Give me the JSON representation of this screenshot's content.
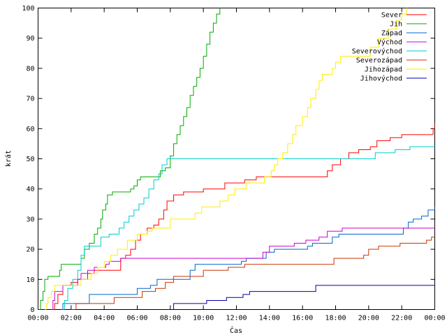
{
  "chart_data": {
    "type": "line",
    "title": "",
    "xlabel": "Čas",
    "ylabel": "krát",
    "xlim": [
      "00:00",
      "24:00"
    ],
    "ylim": [
      0,
      100
    ],
    "x_ticks": [
      "00:00",
      "02:00",
      "04:00",
      "06:00",
      "08:00",
      "10:00",
      "12:00",
      "14:00",
      "16:00",
      "18:00",
      "20:00",
      "22:00",
      "00:00"
    ],
    "y_ticks": [
      0,
      10,
      20,
      30,
      40,
      50,
      60,
      70,
      80,
      90,
      100
    ],
    "grid": false,
    "legend_position": "top-right",
    "step": true,
    "series": [
      {
        "name": "Sever",
        "color": "#ff0000",
        "points": [
          [
            0.9,
            0
          ],
          [
            1,
            2
          ],
          [
            1.2,
            5
          ],
          [
            1.5,
            8
          ],
          [
            2,
            9
          ],
          [
            2.4,
            10
          ],
          [
            3,
            12
          ],
          [
            3.4,
            13
          ],
          [
            4.5,
            13
          ],
          [
            5,
            17
          ],
          [
            5.3,
            18
          ],
          [
            5.6,
            20
          ],
          [
            5.9,
            23
          ],
          [
            6.2,
            25
          ],
          [
            6.6,
            27
          ],
          [
            7,
            28
          ],
          [
            7.3,
            30
          ],
          [
            7.6,
            33
          ],
          [
            7.8,
            36
          ],
          [
            8.2,
            38
          ],
          [
            8.8,
            39
          ],
          [
            10,
            40
          ],
          [
            11.3,
            42
          ],
          [
            12.5,
            43
          ],
          [
            13.2,
            44
          ],
          [
            17.5,
            46
          ],
          [
            17.8,
            48
          ],
          [
            18.3,
            50
          ],
          [
            18.8,
            52
          ],
          [
            19.4,
            53
          ],
          [
            20.1,
            54
          ],
          [
            20.5,
            56
          ],
          [
            21.3,
            57
          ],
          [
            22,
            58
          ],
          [
            23.9,
            60
          ],
          [
            24,
            62
          ]
        ]
      },
      {
        "name": "Jih",
        "color": "#00aa00",
        "points": [
          [
            0,
            0
          ],
          [
            0.15,
            3
          ],
          [
            0.3,
            6
          ],
          [
            0.4,
            10
          ],
          [
            0.6,
            11
          ],
          [
            1.3,
            13
          ],
          [
            1.4,
            15
          ],
          [
            2.3,
            15
          ],
          [
            2.6,
            17
          ],
          [
            2.8,
            20
          ],
          [
            3.1,
            22
          ],
          [
            3.4,
            25
          ],
          [
            3.6,
            27
          ],
          [
            3.8,
            30
          ],
          [
            3.9,
            33
          ],
          [
            4.1,
            35
          ],
          [
            4.2,
            38
          ],
          [
            4.5,
            39
          ],
          [
            5.4,
            39
          ],
          [
            5.6,
            40
          ],
          [
            5.8,
            41
          ],
          [
            6,
            43
          ],
          [
            6.2,
            44
          ],
          [
            7,
            44
          ],
          [
            7.4,
            46
          ],
          [
            7.7,
            47
          ],
          [
            8,
            51
          ],
          [
            8.2,
            55
          ],
          [
            8.4,
            58
          ],
          [
            8.6,
            61
          ],
          [
            8.8,
            64
          ],
          [
            9,
            67
          ],
          [
            9.2,
            71
          ],
          [
            9.4,
            74
          ],
          [
            9.6,
            77
          ],
          [
            9.8,
            80
          ],
          [
            10,
            84
          ],
          [
            10.2,
            88
          ],
          [
            10.4,
            92
          ],
          [
            10.6,
            95
          ],
          [
            10.8,
            98
          ],
          [
            11,
            100
          ]
        ]
      },
      {
        "name": "Západ",
        "color": "#0066cc",
        "points": [
          [
            1.4,
            0
          ],
          [
            1.5,
            2
          ],
          [
            3,
            2
          ],
          [
            3.1,
            5
          ],
          [
            5.6,
            5
          ],
          [
            6,
            7
          ],
          [
            6.8,
            8
          ],
          [
            7.2,
            10
          ],
          [
            8.8,
            10
          ],
          [
            9.2,
            13
          ],
          [
            9.5,
            15
          ],
          [
            12.3,
            16
          ],
          [
            12.6,
            17
          ],
          [
            13.6,
            17
          ],
          [
            13.8,
            19
          ],
          [
            14.3,
            20
          ],
          [
            16.3,
            21
          ],
          [
            16.6,
            22
          ],
          [
            17.8,
            24
          ],
          [
            18.2,
            25
          ],
          [
            21.9,
            25
          ],
          [
            22.1,
            27
          ],
          [
            22.4,
            29
          ],
          [
            22.7,
            30
          ],
          [
            23.2,
            31
          ],
          [
            23.6,
            33
          ],
          [
            24,
            34
          ]
        ]
      },
      {
        "name": "Východ",
        "color": "#cc00cc",
        "points": [
          [
            0.8,
            0
          ],
          [
            0.9,
            3
          ],
          [
            1,
            6
          ],
          [
            1.4,
            6
          ],
          [
            1.5,
            8
          ],
          [
            2.4,
            10
          ],
          [
            2.6,
            12
          ],
          [
            3,
            13
          ],
          [
            3.4,
            14
          ],
          [
            4.1,
            15
          ],
          [
            4.3,
            16
          ],
          [
            5,
            17
          ],
          [
            13.4,
            17
          ],
          [
            13.6,
            19
          ],
          [
            14,
            21
          ],
          [
            15.5,
            22
          ],
          [
            16.2,
            23
          ],
          [
            17,
            24
          ],
          [
            17.5,
            26
          ],
          [
            18.4,
            27
          ],
          [
            24,
            27
          ]
        ]
      },
      {
        "name": "Severovýchod",
        "color": "#00cccc",
        "points": [
          [
            1.5,
            0
          ],
          [
            1.6,
            3
          ],
          [
            1.8,
            7
          ],
          [
            2.1,
            10
          ],
          [
            2.4,
            13
          ],
          [
            2.6,
            18
          ],
          [
            2.8,
            21
          ],
          [
            3.5,
            21
          ],
          [
            3.8,
            24
          ],
          [
            4.3,
            25
          ],
          [
            4.9,
            27
          ],
          [
            5.2,
            29
          ],
          [
            5.5,
            31
          ],
          [
            5.8,
            33
          ],
          [
            6.1,
            35
          ],
          [
            6.4,
            37
          ],
          [
            6.7,
            40
          ],
          [
            7,
            43
          ],
          [
            7.3,
            45
          ],
          [
            7.5,
            48
          ],
          [
            7.8,
            50
          ],
          [
            20,
            50
          ],
          [
            20.4,
            52
          ],
          [
            21.6,
            53
          ],
          [
            22.5,
            54
          ],
          [
            24,
            54
          ]
        ]
      },
      {
        "name": "Severozápad",
        "color": "#cc3300",
        "points": [
          [
            2,
            0
          ],
          [
            2.3,
            2
          ],
          [
            4.3,
            2
          ],
          [
            4.6,
            4
          ],
          [
            6.1,
            4
          ],
          [
            6.3,
            6
          ],
          [
            7.1,
            7
          ],
          [
            7.7,
            9
          ],
          [
            8.2,
            11
          ],
          [
            9.5,
            11
          ],
          [
            10,
            13
          ],
          [
            11.5,
            14
          ],
          [
            12.5,
            15
          ],
          [
            17.5,
            15
          ],
          [
            17.9,
            17
          ],
          [
            19.7,
            18
          ],
          [
            20,
            20
          ],
          [
            20.6,
            21
          ],
          [
            21.9,
            22
          ],
          [
            23.5,
            23
          ],
          [
            23.8,
            24
          ],
          [
            24,
            24
          ]
        ]
      },
      {
        "name": "Jihozápad",
        "color": "#ffee00",
        "points": [
          [
            0.4,
            0
          ],
          [
            0.5,
            2
          ],
          [
            0.6,
            4
          ],
          [
            0.8,
            6
          ],
          [
            1,
            8
          ],
          [
            2.2,
            8
          ],
          [
            2.6,
            10
          ],
          [
            3.2,
            12
          ],
          [
            3.6,
            14
          ],
          [
            4,
            16
          ],
          [
            4.4,
            18
          ],
          [
            4.8,
            20
          ],
          [
            5.4,
            23
          ],
          [
            6,
            25
          ],
          [
            6.6,
            26
          ],
          [
            6.9,
            27
          ],
          [
            8,
            30
          ],
          [
            9.2,
            30
          ],
          [
            9.5,
            32
          ],
          [
            9.9,
            34
          ],
          [
            10.6,
            34
          ],
          [
            11,
            36
          ],
          [
            11.5,
            38
          ],
          [
            11.9,
            40
          ],
          [
            12.6,
            42
          ],
          [
            13.4,
            42
          ],
          [
            13.7,
            44
          ],
          [
            14.1,
            46
          ],
          [
            14.3,
            48
          ],
          [
            14.5,
            50
          ],
          [
            14.8,
            52
          ],
          [
            15.1,
            55
          ],
          [
            15.4,
            58
          ],
          [
            15.6,
            61
          ],
          [
            16,
            64
          ],
          [
            16.3,
            67
          ],
          [
            16.5,
            70
          ],
          [
            16.8,
            73
          ],
          [
            17,
            76
          ],
          [
            17.2,
            78
          ],
          [
            17.8,
            80
          ],
          [
            18,
            82
          ],
          [
            18.3,
            84
          ],
          [
            19.7,
            84
          ],
          [
            20.1,
            87
          ],
          [
            20.6,
            90
          ],
          [
            21.2,
            93
          ],
          [
            21.7,
            96
          ],
          [
            22,
            98
          ],
          [
            22.3,
            100
          ]
        ]
      },
      {
        "name": "Jihovýchod",
        "color": "#0000aa",
        "points": [
          [
            8.1,
            0
          ],
          [
            8.2,
            2
          ],
          [
            10,
            2
          ],
          [
            10.2,
            3
          ],
          [
            11.4,
            4
          ],
          [
            12.4,
            5
          ],
          [
            12.8,
            6
          ],
          [
            16.6,
            6
          ],
          [
            16.8,
            8
          ],
          [
            24,
            8
          ]
        ]
      }
    ]
  }
}
